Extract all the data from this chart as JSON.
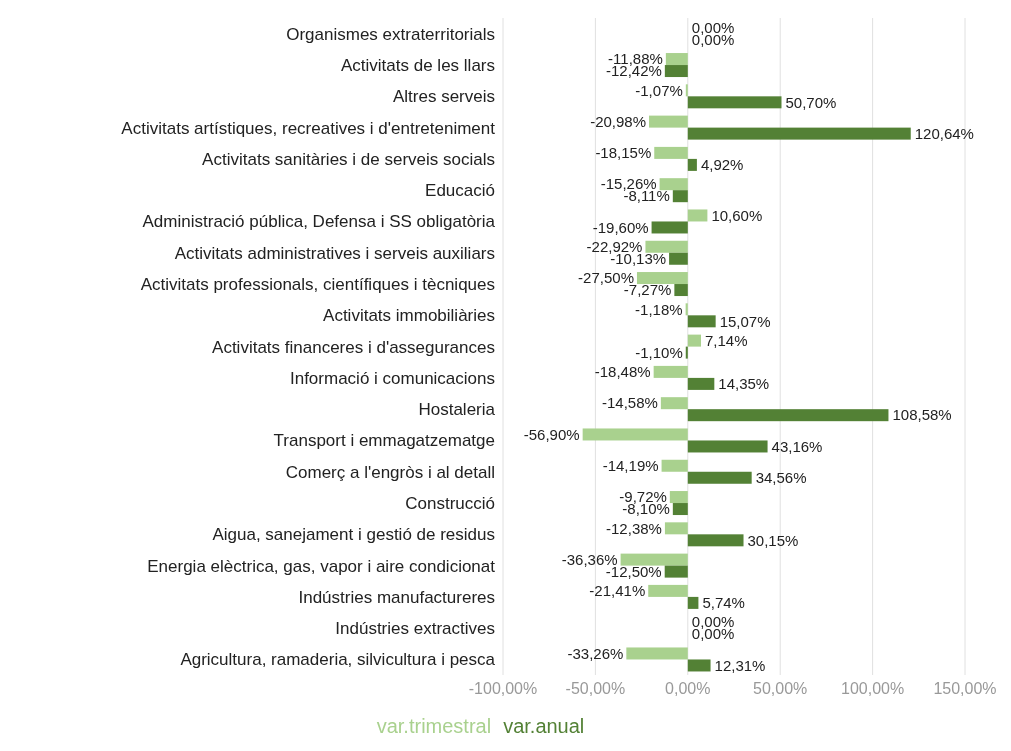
{
  "chart_data": {
    "type": "bar",
    "orientation": "horizontal",
    "categories": [
      "Organismes extraterritorials",
      "Activitats de les llars",
      "Altres serveis",
      "Activitats artístiques, recreatives i d'entreteniment",
      "Activitats sanitàries i de serveis socials",
      "Educació",
      "Administració pública, Defensa i SS obligatòria",
      "Activitats administratives i serveis auxiliars",
      "Activitats professionals, científiques i tècniques",
      "Activitats immobiliàries",
      "Activitats financeres i d'assegurances",
      "Informació i comunicacions",
      "Hostaleria",
      "Transport i emmagatzematge",
      "Comerç a l'engròs i al detall",
      "Construcció",
      "Aigua, sanejament i gestió de residus",
      "Energia elèctrica, gas, vapor i aire condicionat",
      "Indústries manufactureres",
      "Indústries extractives",
      "Agricultura, ramaderia, silvicultura i pesca"
    ],
    "series": [
      {
        "name": "var.trimestral",
        "color": "#a9d18e",
        "values": [
          0,
          -11.88,
          -1.07,
          -20.98,
          -18.15,
          -15.26,
          10.6,
          -22.92,
          -27.5,
          -1.18,
          7.14,
          -18.48,
          -14.58,
          -56.9,
          -14.19,
          -9.72,
          -12.38,
          -36.36,
          -21.41,
          0,
          -33.26
        ],
        "value_labels": [
          "0,00%",
          "-11,88%",
          "-1,07%",
          "-20,98%",
          "-18,15%",
          "-15,26%",
          "10,60%",
          "-22,92%",
          "-27,50%",
          "-1,18%",
          "7,14%",
          "-18,48%",
          "-14,58%",
          "-56,90%",
          "-14,19%",
          "-9,72%",
          "-12,38%",
          "-36,36%",
          "-21,41%",
          "0,00%",
          "-33,26%"
        ]
      },
      {
        "name": "var.anual",
        "color": "#538135",
        "values": [
          0,
          -12.42,
          50.7,
          120.64,
          4.92,
          -8.11,
          -19.6,
          -10.13,
          -7.27,
          15.07,
          -1.1,
          14.35,
          108.58,
          43.16,
          34.56,
          -8.1,
          30.15,
          -12.5,
          5.74,
          0,
          12.31
        ],
        "value_labels": [
          "0,00%",
          "-12,42%",
          "50,70%",
          "120,64%",
          "4,92%",
          "-8,11%",
          "-19,60%",
          "-10,13%",
          "-7,27%",
          "15,07%",
          "-1,10%",
          "14,35%",
          "108,58%",
          "43,16%",
          "34,56%",
          "-8,10%",
          "30,15%",
          "-12,50%",
          "5,74%",
          "0,00%",
          "12,31%"
        ]
      }
    ],
    "xlim": [
      -100,
      150
    ],
    "xticks": [
      {
        "value": -100,
        "label": "-100,00%"
      },
      {
        "value": -50,
        "label": "-50,00%"
      },
      {
        "value": 0,
        "label": "0,00%"
      },
      {
        "value": 50,
        "label": "50,00%"
      },
      {
        "value": 100,
        "label": "100,00%"
      },
      {
        "value": 150,
        "label": "150,00%"
      }
    ],
    "grid": "x",
    "legend": "bottom"
  }
}
